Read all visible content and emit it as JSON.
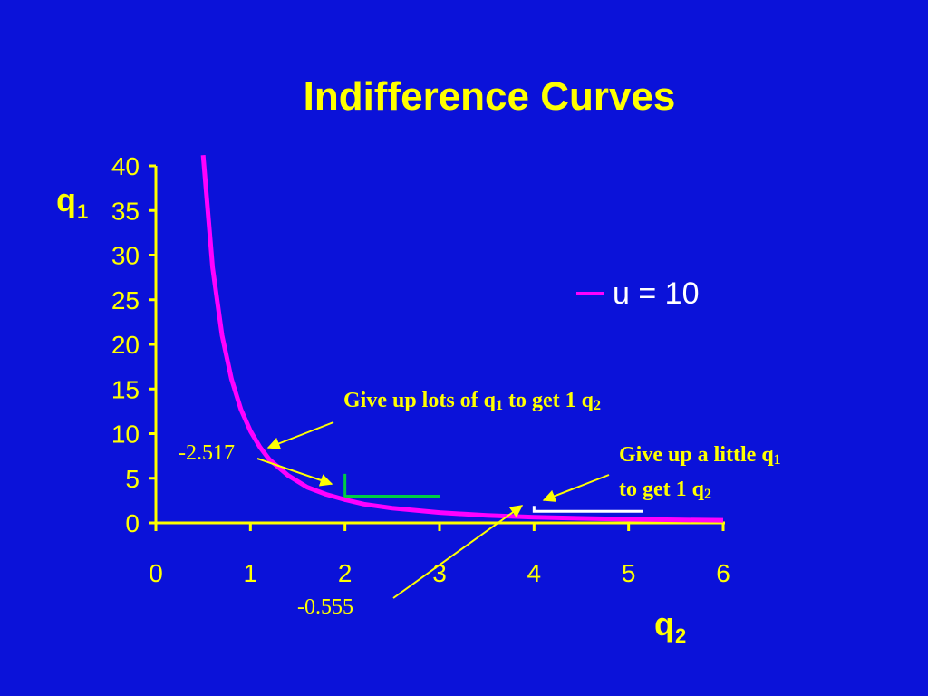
{
  "chart_data": {
    "type": "line",
    "title": "Indifference Curves",
    "ylabel": {
      "main": "q",
      "sub": "1"
    },
    "xlabel": {
      "main": "q",
      "sub": "2"
    },
    "xlim": [
      0,
      6
    ],
    "ylim": [
      0,
      40
    ],
    "x_ticks": [
      0,
      1,
      2,
      3,
      4,
      5,
      6
    ],
    "y_ticks": [
      0,
      5,
      10,
      15,
      20,
      25,
      30,
      35,
      40
    ],
    "legend_position": "right",
    "series": [
      {
        "name": "u = 10",
        "color": "#ff00ff",
        "x": [
          0.5,
          0.6,
          0.7,
          0.8,
          0.9,
          1.0,
          1.1,
          1.2,
          1.4,
          1.6,
          1.8,
          2.0,
          2.2,
          2.5,
          3.0,
          3.5,
          4.0,
          4.5,
          5.0,
          5.5,
          6.0
        ],
        "y": [
          41.2,
          28.6,
          21.0,
          16.1,
          12.7,
          10.3,
          8.5,
          7.1,
          5.3,
          4.0,
          3.2,
          2.6,
          2.1,
          1.65,
          1.15,
          0.84,
          0.64,
          0.51,
          0.41,
          0.34,
          0.29
        ]
      }
    ],
    "steps": [
      {
        "color": "#00cc44",
        "x": [
          2,
          3
        ],
        "y": [
          5.5,
          3.0
        ]
      },
      {
        "color": "#ffffff",
        "x": [
          4,
          5.15
        ],
        "y": [
          1.9,
          1.3
        ]
      }
    ],
    "annotations": [
      {
        "id": "lots",
        "lines": [
          [
            {
              "t": "Give up lots of q"
            },
            {
              "t": "1",
              "sub": true
            },
            {
              "t": " to get 1 q"
            },
            {
              "t": "2",
              "sub": true
            }
          ]
        ]
      },
      {
        "id": "little",
        "lines": [
          [
            {
              "t": "Give up a little q"
            },
            {
              "t": "1",
              "sub": true
            }
          ],
          [
            {
              "t": "to get 1 q"
            },
            {
              "t": "2",
              "sub": true
            }
          ]
        ]
      }
    ],
    "values": {
      "slope_1": "-2.517",
      "slope_2": "-0.555"
    }
  }
}
